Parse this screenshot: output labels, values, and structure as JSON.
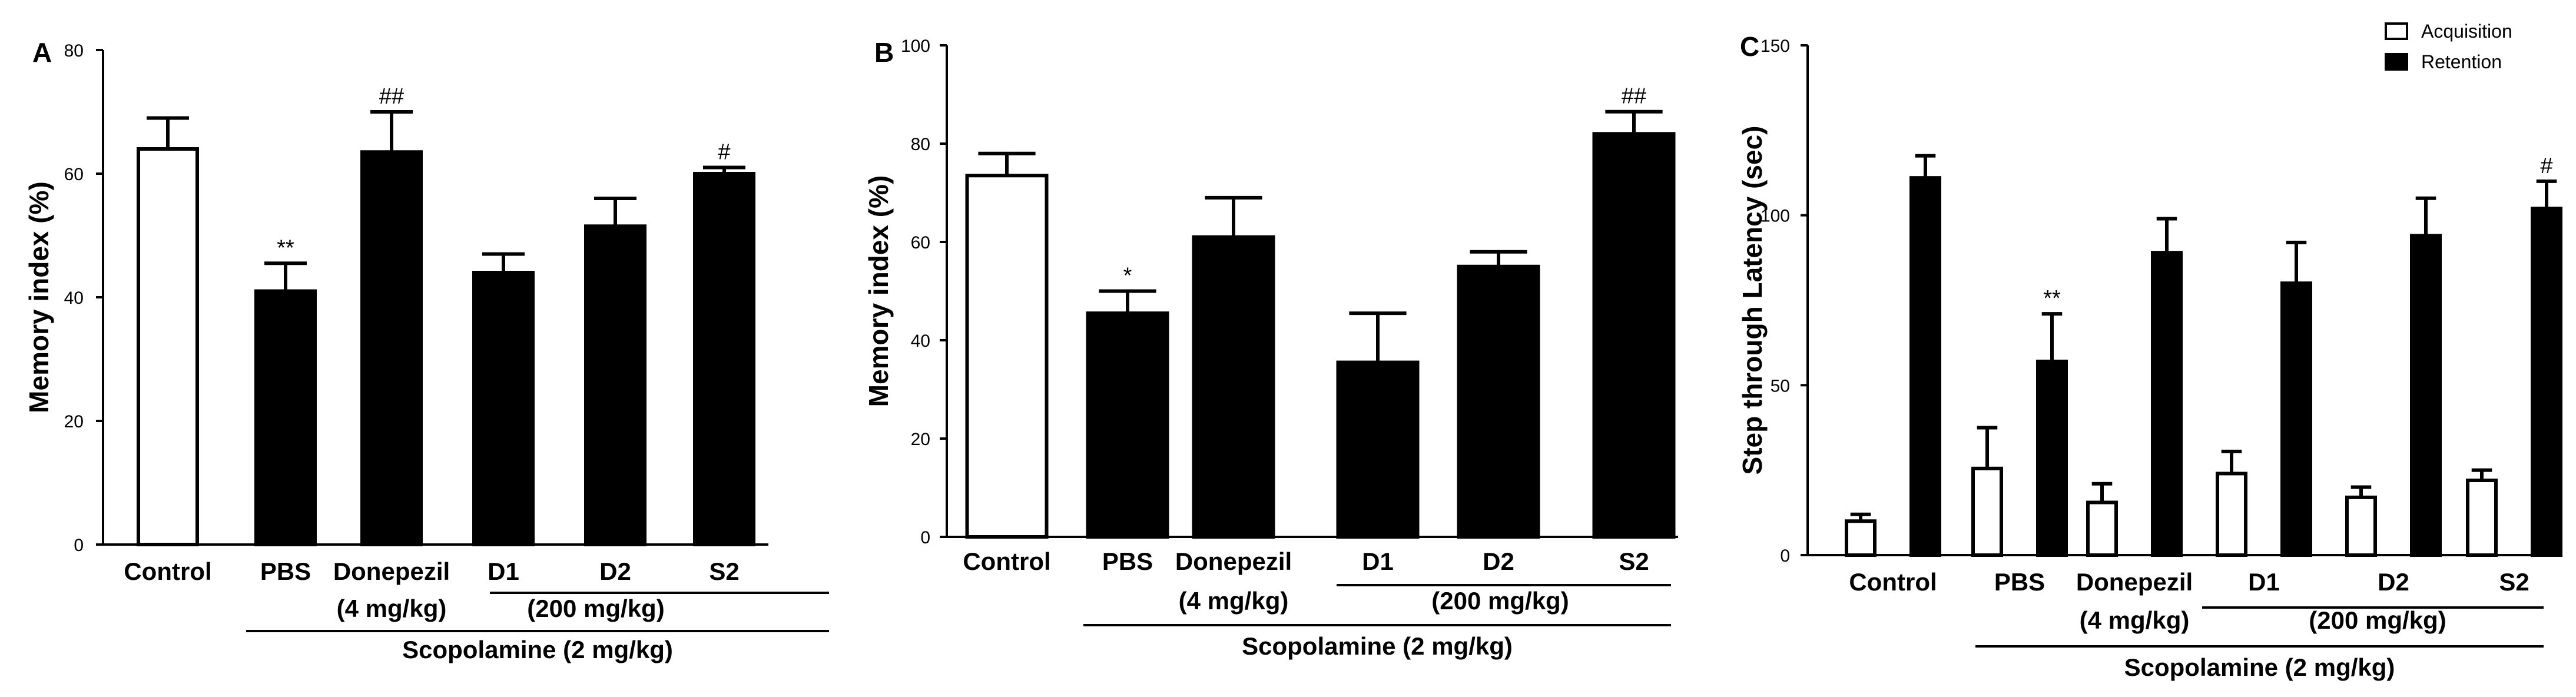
{
  "figure": {
    "colors": {
      "filled": "#000000",
      "open": "#ffffff",
      "axis": "#000000"
    }
  },
  "chart_data": [
    {
      "panel": "A",
      "type": "bar",
      "ylabel": "Memory index (%)",
      "ylim": [
        0,
        80
      ],
      "yticks": [
        0,
        20,
        40,
        60,
        80
      ],
      "categories": [
        "Control",
        "PBS",
        "Donepezil",
        "D1",
        "D2",
        "S2"
      ],
      "category_sublabels": [
        "",
        "",
        "(4 mg/kg)",
        "",
        "",
        ""
      ],
      "values": [
        64,
        41,
        63.5,
        44,
        51.5,
        60
      ],
      "errors": [
        5,
        4.5,
        6.5,
        3,
        4.5,
        1
      ],
      "fills": [
        "open",
        "filled",
        "filled",
        "filled",
        "filled",
        "filled"
      ],
      "significance": [
        "",
        "**",
        "##",
        "",
        "",
        "#"
      ],
      "group_label": "(200 mg/kg)",
      "outer_group_label": "Scopolamine (2 mg/kg)"
    },
    {
      "panel": "B",
      "type": "bar",
      "ylabel": "Memory index (%)",
      "ylim": [
        0,
        100
      ],
      "yticks": [
        0,
        20,
        40,
        60,
        80,
        100
      ],
      "categories": [
        "Control",
        "PBS",
        "Donepezil",
        "D1",
        "D2",
        "S2"
      ],
      "category_sublabels": [
        "",
        "",
        "(4 mg/kg)",
        "",
        "",
        ""
      ],
      "values": [
        73.5,
        45.5,
        61,
        35.5,
        55,
        82
      ],
      "errors": [
        4.5,
        4.5,
        8,
        10,
        3,
        4.5
      ],
      "fills": [
        "open",
        "filled",
        "filled",
        "filled",
        "filled",
        "filled"
      ],
      "significance": [
        "",
        "*",
        "",
        "",
        "",
        "##"
      ],
      "group_label": "(200 mg/kg)",
      "outer_group_label": "Scopolamine (2 mg/kg)"
    },
    {
      "panel": "C",
      "type": "bar",
      "ylabel": "Step through Latency (sec)",
      "ylim": [
        0,
        150
      ],
      "yticks": [
        0,
        50,
        100,
        150
      ],
      "categories": [
        "Control",
        "PBS",
        "Donepezil",
        "D1",
        "D2",
        "S2"
      ],
      "category_sublabels": [
        "",
        "",
        "(4 mg/kg)",
        "",
        "",
        ""
      ],
      "series": [
        {
          "name": "Acquisition",
          "fill": "open",
          "values": [
            10,
            25.5,
            15.5,
            24,
            17,
            22
          ],
          "errors": [
            2,
            12,
            5.5,
            6.5,
            3,
            3
          ],
          "significance": [
            "",
            "",
            "",
            "",
            "",
            ""
          ]
        },
        {
          "name": "Retention",
          "fill": "filled",
          "values": [
            111,
            57,
            89,
            80,
            94,
            102
          ],
          "errors": [
            6.5,
            14,
            10,
            12,
            11,
            8
          ],
          "significance": [
            "",
            "**",
            "",
            "",
            "",
            "#"
          ]
        }
      ],
      "legend_position": "top-right",
      "group_label": "(200 mg/kg)",
      "outer_group_label": "Scopolamine (2 mg/kg)"
    }
  ]
}
